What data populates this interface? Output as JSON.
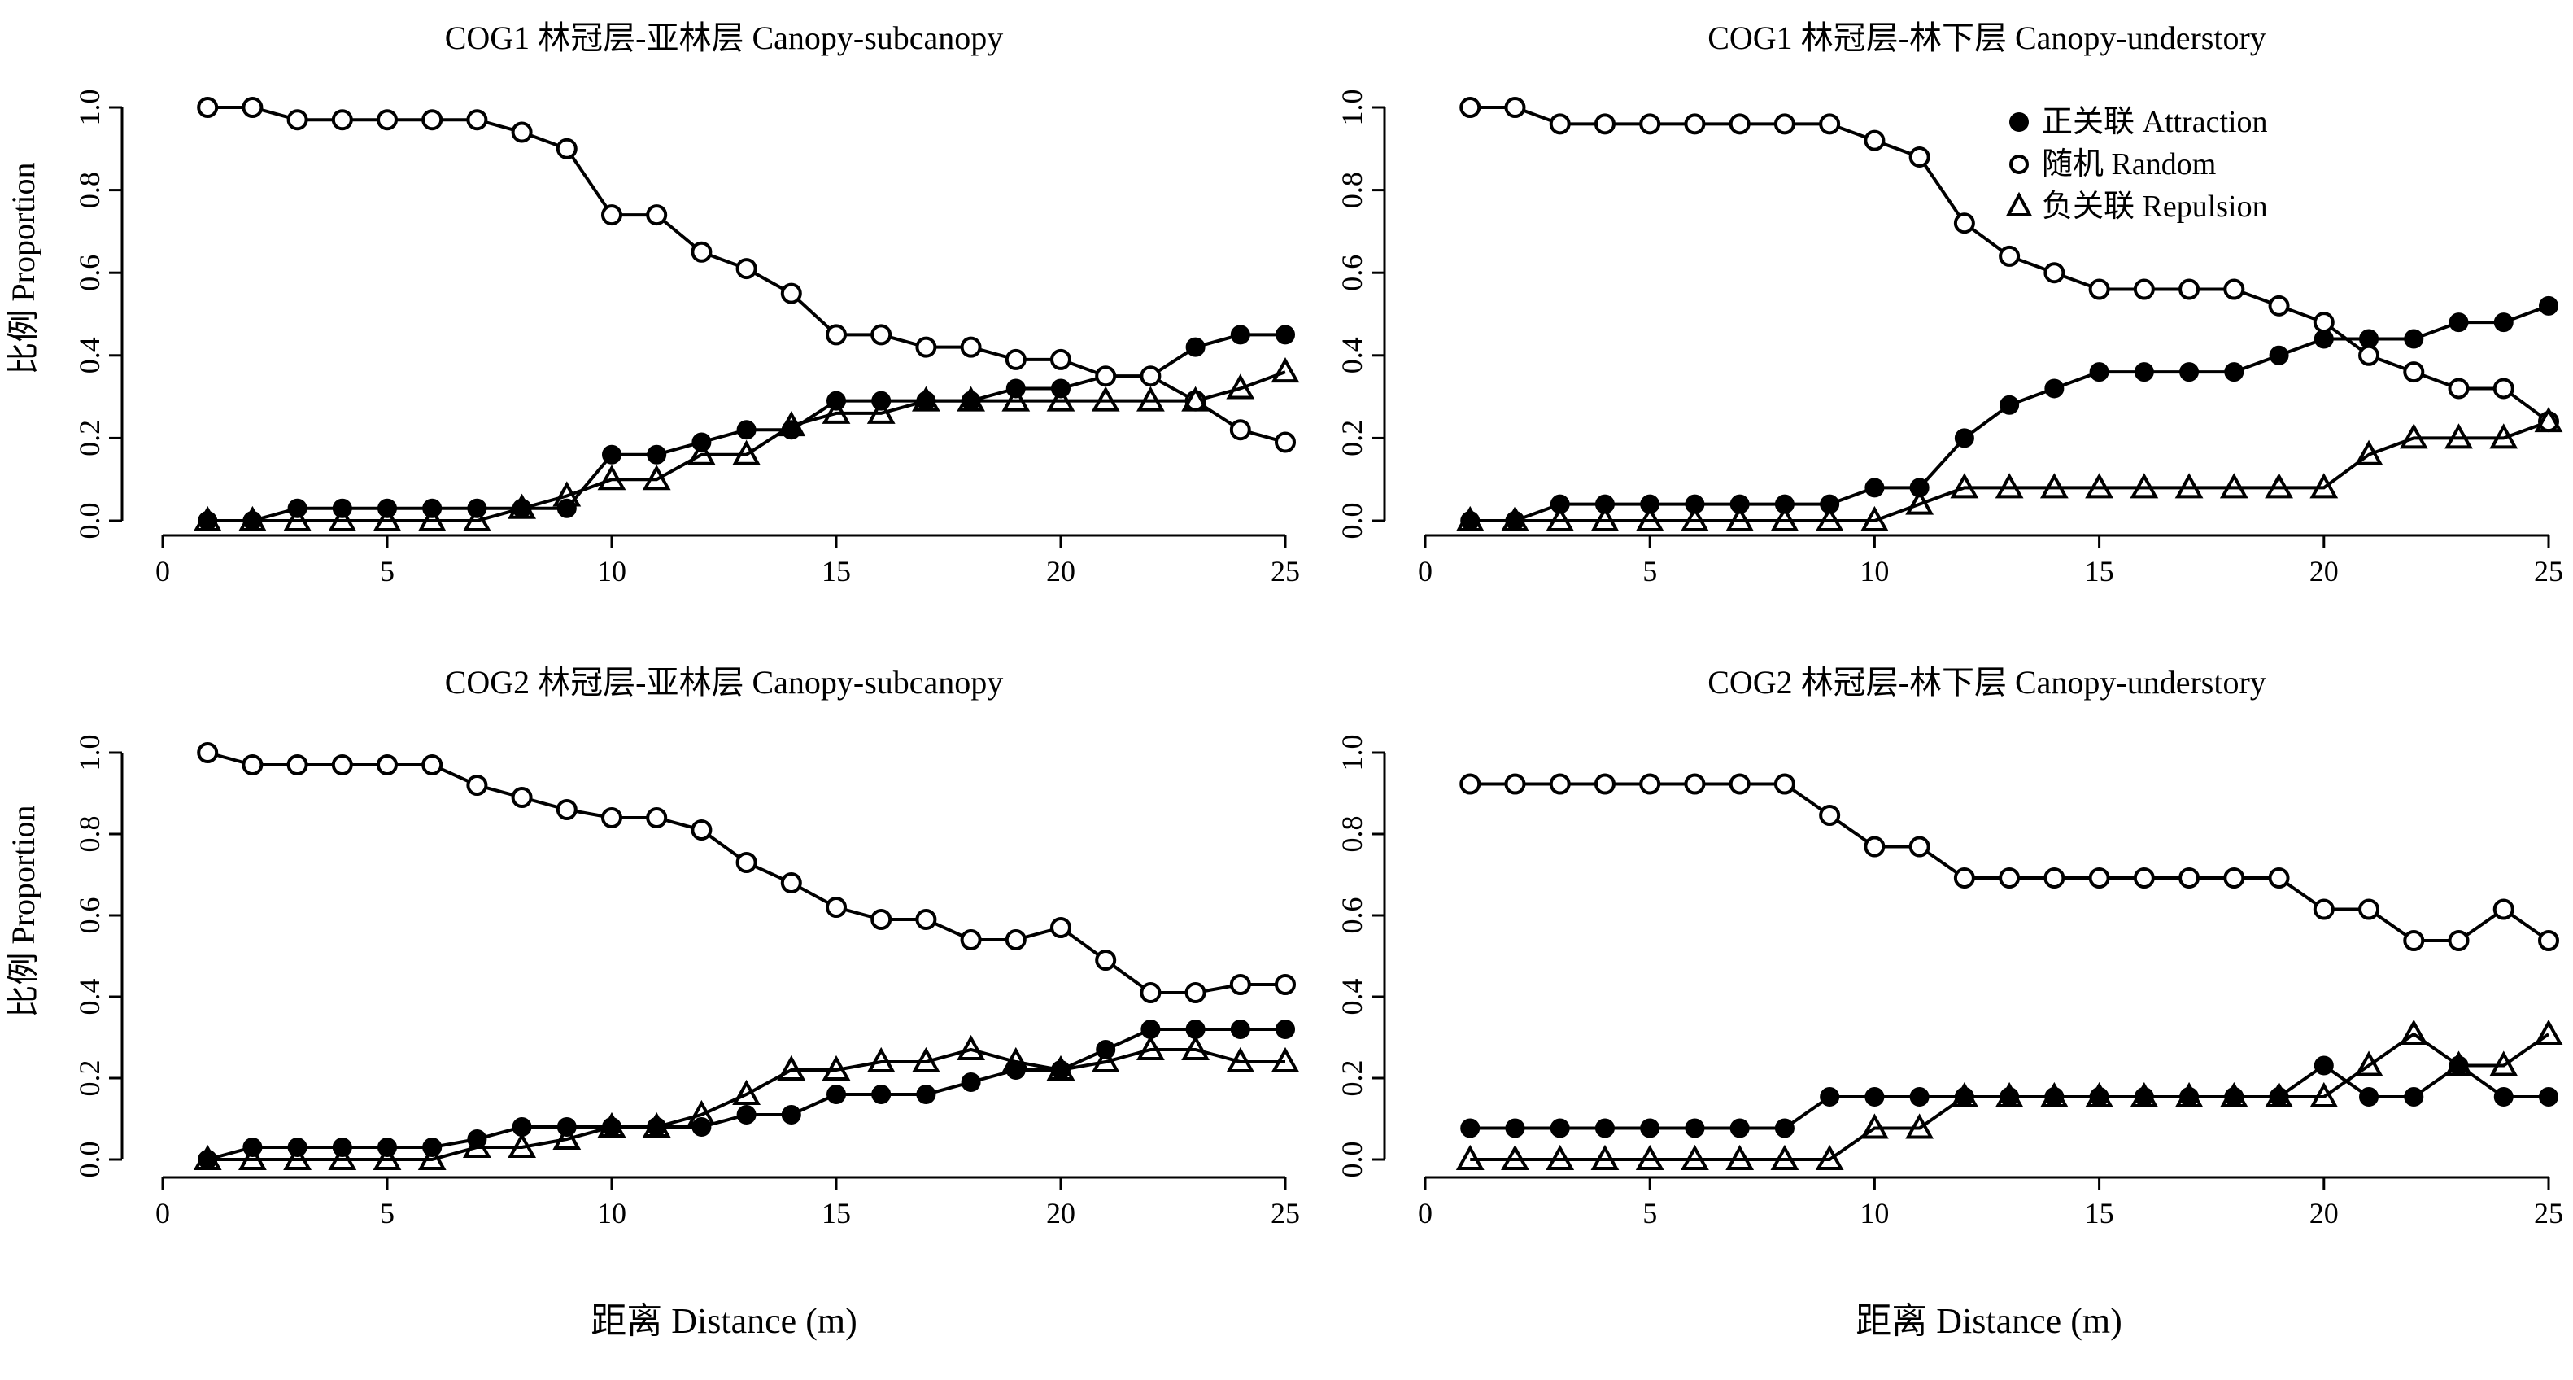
{
  "figure": {
    "ylabel": "比例 Proportion",
    "xlabel": "距离 Distance (m)"
  },
  "legend": {
    "placement": "top-right of panel 2",
    "entries": [
      {
        "label": "正关联 Attraction",
        "marker": "filled-circle"
      },
      {
        "label": "随机 Random",
        "marker": "open-circle"
      },
      {
        "label": "负关联 Repulsion",
        "marker": "open-triangle"
      }
    ]
  },
  "axes": {
    "x_ticks": [
      "0",
      "5",
      "10",
      "15",
      "20",
      "25"
    ],
    "y_ticks": [
      "0.0",
      "0.2",
      "0.4",
      "0.6",
      "0.8",
      "1.0"
    ]
  },
  "chart_data": [
    {
      "type": "line",
      "title": "COG1 林冠层-亚林层 Canopy-subcanopy",
      "xlim": [
        0,
        25
      ],
      "ylim": [
        0,
        1
      ],
      "x": [
        1,
        2,
        3,
        4,
        5,
        6,
        7,
        8,
        9,
        10,
        11,
        12,
        13,
        14,
        15,
        16,
        17,
        18,
        19,
        20,
        21,
        22,
        23,
        24,
        25
      ],
      "series": [
        {
          "name": "正关联 Attraction",
          "values": [
            0,
            0,
            0.03,
            0.03,
            0.03,
            0.03,
            0.03,
            0.03,
            0.03,
            0.16,
            0.16,
            0.19,
            0.22,
            0.22,
            0.29,
            0.29,
            0.29,
            0.29,
            0.32,
            0.32,
            0.35,
            0.35,
            0.42,
            0.45,
            0.45
          ]
        },
        {
          "name": "随机 Random",
          "values": [
            1.0,
            1.0,
            0.97,
            0.97,
            0.97,
            0.97,
            0.97,
            0.94,
            0.9,
            0.74,
            0.74,
            0.65,
            0.61,
            0.55,
            0.45,
            0.45,
            0.42,
            0.42,
            0.39,
            0.39,
            0.35,
            0.35,
            0.29,
            0.22,
            0.19
          ]
        },
        {
          "name": "负关联 Repulsion",
          "values": [
            0,
            0,
            0,
            0,
            0,
            0,
            0,
            0.03,
            0.06,
            0.1,
            0.1,
            0.16,
            0.16,
            0.23,
            0.26,
            0.26,
            0.29,
            0.29,
            0.29,
            0.29,
            0.29,
            0.29,
            0.29,
            0.32,
            0.36
          ]
        }
      ]
    },
    {
      "type": "line",
      "title": "COG1 林冠层-林下层 Canopy-understory",
      "xlim": [
        0,
        25
      ],
      "ylim": [
        0,
        1
      ],
      "x": [
        1,
        2,
        3,
        4,
        5,
        6,
        7,
        8,
        9,
        10,
        11,
        12,
        13,
        14,
        15,
        16,
        17,
        18,
        19,
        20,
        21,
        22,
        23,
        24,
        25
      ],
      "series": [
        {
          "name": "正关联 Attraction",
          "values": [
            0,
            0,
            0.04,
            0.04,
            0.04,
            0.04,
            0.04,
            0.04,
            0.04,
            0.08,
            0.08,
            0.2,
            0.28,
            0.32,
            0.36,
            0.36,
            0.36,
            0.36,
            0.4,
            0.44,
            0.44,
            0.44,
            0.48,
            0.48,
            0.52
          ]
        },
        {
          "name": "随机 Random",
          "values": [
            1.0,
            1.0,
            0.96,
            0.96,
            0.96,
            0.96,
            0.96,
            0.96,
            0.96,
            0.92,
            0.88,
            0.72,
            0.64,
            0.6,
            0.56,
            0.56,
            0.56,
            0.56,
            0.52,
            0.48,
            0.4,
            0.36,
            0.32,
            0.32,
            0.24
          ]
        },
        {
          "name": "负关联 Repulsion",
          "values": [
            0,
            0,
            0,
            0,
            0,
            0,
            0,
            0,
            0,
            0,
            0.04,
            0.08,
            0.08,
            0.08,
            0.08,
            0.08,
            0.08,
            0.08,
            0.08,
            0.08,
            0.16,
            0.2,
            0.2,
            0.2,
            0.24
          ]
        }
      ]
    },
    {
      "type": "line",
      "title": "COG2 林冠层-亚林层 Canopy-subcanopy",
      "xlim": [
        0,
        25
      ],
      "ylim": [
        0,
        1
      ],
      "x": [
        1,
        2,
        3,
        4,
        5,
        6,
        7,
        8,
        9,
        10,
        11,
        12,
        13,
        14,
        15,
        16,
        17,
        18,
        19,
        20,
        21,
        22,
        23,
        24,
        25
      ],
      "series": [
        {
          "name": "正关联 Attraction",
          "values": [
            0,
            0.03,
            0.03,
            0.03,
            0.03,
            0.03,
            0.05,
            0.08,
            0.08,
            0.08,
            0.08,
            0.08,
            0.11,
            0.11,
            0.16,
            0.16,
            0.16,
            0.19,
            0.22,
            0.22,
            0.27,
            0.32,
            0.32,
            0.32,
            0.32
          ]
        },
        {
          "name": "随机 Random",
          "values": [
            1.0,
            0.97,
            0.97,
            0.97,
            0.97,
            0.97,
            0.92,
            0.89,
            0.86,
            0.84,
            0.84,
            0.81,
            0.73,
            0.68,
            0.62,
            0.59,
            0.59,
            0.54,
            0.54,
            0.57,
            0.49,
            0.41,
            0.41,
            0.43,
            0.43
          ]
        },
        {
          "name": "负关联 Repulsion",
          "values": [
            0,
            0,
            0,
            0,
            0,
            0,
            0.03,
            0.03,
            0.05,
            0.08,
            0.08,
            0.11,
            0.16,
            0.22,
            0.22,
            0.24,
            0.24,
            0.27,
            0.24,
            0.22,
            0.24,
            0.27,
            0.27,
            0.24,
            0.24
          ]
        }
      ]
    },
    {
      "type": "line",
      "title": "COG2 林冠层-林下层 Canopy-understory",
      "xlim": [
        0,
        25
      ],
      "ylim": [
        0,
        1
      ],
      "x": [
        1,
        2,
        3,
        4,
        5,
        6,
        7,
        8,
        9,
        10,
        11,
        12,
        13,
        14,
        15,
        16,
        17,
        18,
        19,
        20,
        21,
        22,
        23,
        24,
        25
      ],
      "series": [
        {
          "name": "正关联 Attraction",
          "values": [
            0.077,
            0.077,
            0.077,
            0.077,
            0.077,
            0.077,
            0.077,
            0.077,
            0.154,
            0.154,
            0.154,
            0.154,
            0.154,
            0.154,
            0.154,
            0.154,
            0.154,
            0.154,
            0.154,
            0.231,
            0.154,
            0.154,
            0.231,
            0.154,
            0.154
          ]
        },
        {
          "name": "随机 Random",
          "values": [
            0.923,
            0.923,
            0.923,
            0.923,
            0.923,
            0.923,
            0.923,
            0.923,
            0.846,
            0.769,
            0.769,
            0.692,
            0.692,
            0.692,
            0.692,
            0.692,
            0.692,
            0.692,
            0.692,
            0.615,
            0.615,
            0.538,
            0.538,
            0.615,
            0.538
          ]
        },
        {
          "name": "负关联 Repulsion",
          "values": [
            0,
            0,
            0,
            0,
            0,
            0,
            0,
            0,
            0,
            0.077,
            0.077,
            0.154,
            0.154,
            0.154,
            0.154,
            0.154,
            0.154,
            0.154,
            0.154,
            0.154,
            0.231,
            0.308,
            0.231,
            0.231,
            0.308
          ]
        }
      ]
    }
  ]
}
